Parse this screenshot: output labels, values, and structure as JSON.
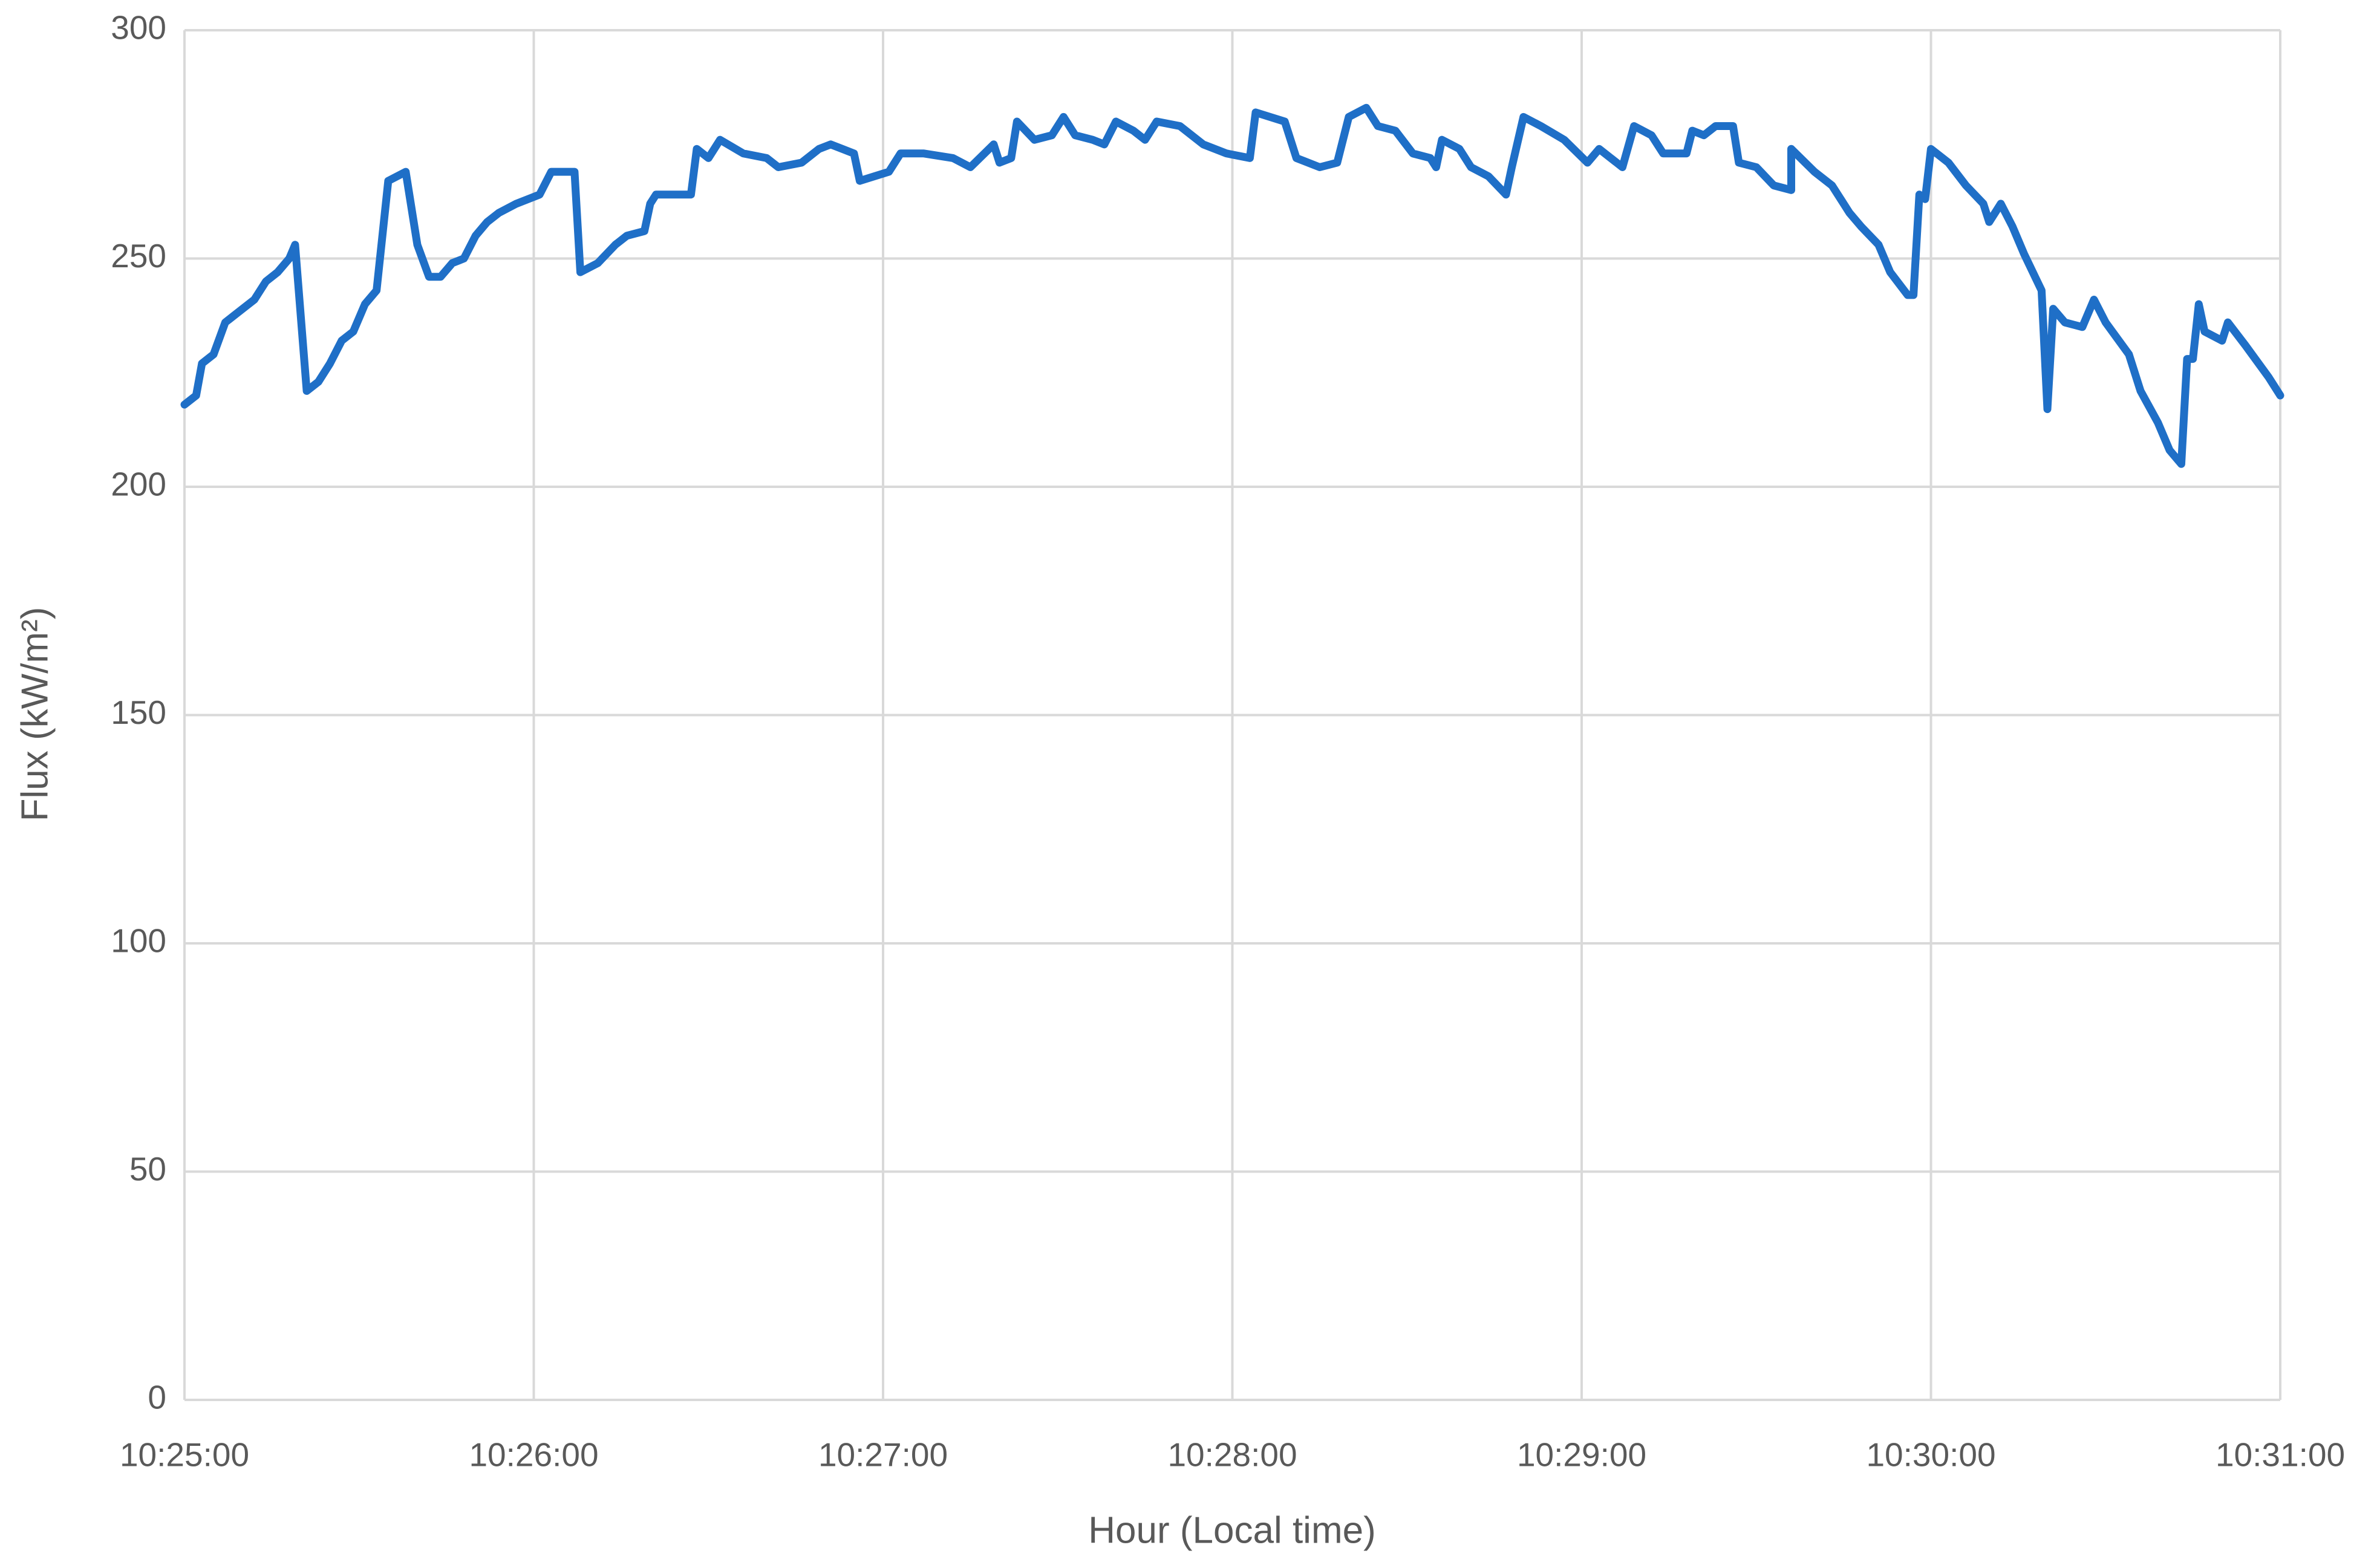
{
  "chart_data": {
    "type": "line",
    "xlabel": "Hour (Local time)",
    "ylabel": "Flux (kW/m²)",
    "color": "#1f6fc7",
    "grid": true,
    "x": [
      "10:25:00",
      "10:25:02",
      "10:25:03",
      "10:25:05",
      "10:25:07",
      "10:25:09",
      "10:25:12",
      "10:25:14",
      "10:25:16",
      "10:25:18",
      "10:25:19",
      "10:25:21",
      "10:25:23",
      "10:25:25",
      "10:25:27",
      "10:25:29",
      "10:25:31",
      "10:25:33",
      "10:25:35",
      "10:25:38",
      "10:25:40",
      "10:25:42",
      "10:25:44",
      "10:25:46",
      "10:25:48",
      "10:25:50",
      "10:25:52",
      "10:25:54",
      "10:25:57",
      "10:26:01",
      "10:26:03",
      "10:26:07",
      "10:26:08",
      "10:26:11",
      "10:26:14",
      "10:26:16",
      "10:26:19",
      "10:26:20",
      "10:26:21",
      "10:26:25",
      "10:26:27",
      "10:26:28",
      "10:26:30",
      "10:26:32",
      "10:26:36",
      "10:26:40",
      "10:26:42",
      "10:26:46",
      "10:26:49",
      "10:26:51",
      "10:26:55",
      "10:26:56",
      "10:27:01",
      "10:27:03",
      "10:27:07",
      "10:27:12",
      "10:27:15",
      "10:27:19",
      "10:27:20",
      "10:27:22",
      "10:27:23",
      "10:27:26",
      "10:27:29",
      "10:27:31",
      "10:27:33",
      "10:27:36",
      "10:27:38",
      "10:27:40",
      "10:27:43",
      "10:27:45",
      "10:27:47",
      "10:27:51",
      "10:27:55",
      "10:27:59",
      "10:28:03",
      "10:28:04",
      "10:28:09",
      "10:28:11",
      "10:28:15",
      "10:28:18",
      "10:28:20",
      "10:28:23",
      "10:28:25",
      "10:28:28",
      "10:28:31",
      "10:28:34",
      "10:28:35",
      "10:28:36",
      "10:28:39",
      "10:28:41",
      "10:28:44",
      "10:28:47",
      "10:28:48",
      "10:28:50",
      "10:28:53",
      "10:28:57",
      "10:29:01",
      "10:29:03",
      "10:29:07",
      "10:29:09",
      "10:29:12",
      "10:29:14",
      "10:29:18",
      "10:29:19",
      "10:29:21",
      "10:29:23",
      "10:29:26",
      "10:29:27",
      "10:29:30",
      "10:29:33",
      "10:29:36",
      "10:29:36",
      "10:29:40",
      "10:29:43",
      "10:29:46",
      "10:29:48",
      "10:29:51",
      "10:29:53",
      "10:29:56",
      "10:29:57",
      "10:29:58",
      "10:29:59",
      "10:30:00",
      "10:30:03",
      "10:30:06",
      "10:30:09",
      "10:30:10",
      "10:30:12",
      "10:30:14",
      "10:30:16",
      "10:30:19",
      "10:30:20",
      "10:30:21",
      "10:30:23",
      "10:30:26",
      "10:30:28",
      "10:30:30",
      "10:30:34",
      "10:30:36",
      "10:30:39",
      "10:30:41",
      "10:30:43",
      "10:30:44",
      "10:30:45",
      "10:30:46",
      "10:30:47",
      "10:30:50",
      "10:30:51",
      "10:30:54",
      "10:30:58",
      "10:31:00"
    ],
    "values": [
      218,
      220,
      227,
      229,
      236,
      238,
      241,
      245,
      247,
      250,
      253,
      221,
      223,
      227,
      232,
      234,
      240,
      243,
      267,
      269,
      253,
      246,
      246,
      249,
      250,
      255,
      258,
      260,
      262,
      264,
      269,
      269,
      247,
      249,
      253,
      255,
      256,
      262,
      264,
      264,
      264,
      274,
      272,
      276,
      273,
      272,
      270,
      271,
      274,
      275,
      273,
      267,
      269,
      273,
      273,
      272,
      270,
      275,
      271,
      272,
      280,
      276,
      277,
      281,
      277,
      276,
      275,
      280,
      278,
      276,
      280,
      279,
      275,
      273,
      272,
      282,
      280,
      272,
      270,
      271,
      281,
      283,
      279,
      278,
      273,
      272,
      270,
      276,
      274,
      270,
      268,
      264,
      270,
      281,
      279,
      276,
      271,
      274,
      270,
      279,
      277,
      273,
      273,
      278,
      277,
      279,
      279,
      271,
      270,
      266,
      265,
      274,
      269,
      266,
      260,
      257,
      253,
      247,
      242,
      242,
      264,
      263,
      274,
      271,
      266,
      262,
      258,
      262,
      257,
      251,
      243,
      217,
      239,
      236,
      235,
      241,
      236,
      229,
      221,
      214,
      208,
      205,
      228,
      228,
      240,
      234,
      232,
      236,
      231,
      224,
      220
    ],
    "xlim": [
      "10:25:00",
      "10:31:00"
    ],
    "xticks": [
      "10:25:00",
      "10:26:00",
      "10:27:00",
      "10:28:00",
      "10:29:00",
      "10:30:00",
      "10:31:00"
    ],
    "ylim": [
      0,
      300
    ],
    "yticks": [
      0,
      50,
      100,
      150,
      200,
      250,
      300
    ]
  }
}
